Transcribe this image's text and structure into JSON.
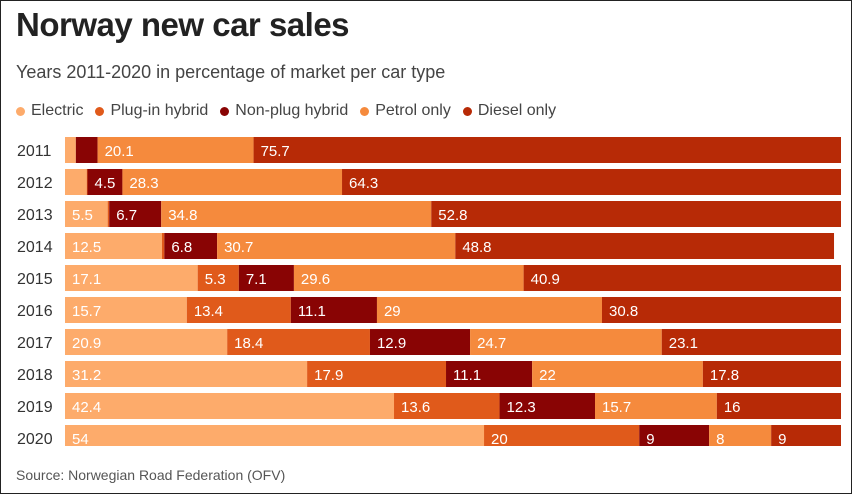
{
  "title": "Norway new car sales",
  "subtitle": "Years 2011-2020 in percentage of market per car type",
  "source": "Source: Norwegian Road Federation (OFV)",
  "chart_data": {
    "type": "bar",
    "orientation": "horizontal",
    "stacked": true,
    "categories": [
      "2011",
      "2012",
      "2013",
      "2014",
      "2015",
      "2016",
      "2017",
      "2018",
      "2019",
      "2020"
    ],
    "series": [
      {
        "name": "Electric",
        "color": "#fdab6b",
        "values": [
          1.4,
          2.8,
          5.5,
          12.5,
          17.1,
          15.7,
          20.9,
          31.2,
          42.4,
          54
        ],
        "labels": [
          "",
          "",
          "5.5",
          "12.5",
          "17.1",
          "15.7",
          "20.9",
          "31.2",
          "42.4",
          "54"
        ]
      },
      {
        "name": "Plug-in hybrid",
        "color": "#e05a1b",
        "values": [
          0,
          0.1,
          0.2,
          0.3,
          5.3,
          13.4,
          18.4,
          17.9,
          13.6,
          20
        ],
        "labels": [
          "",
          "",
          "",
          "",
          "5.3",
          "13.4",
          "18.4",
          "17.9",
          "13.6",
          "20"
        ]
      },
      {
        "name": "Non-plug hybrid",
        "color": "#890404",
        "values": [
          2.8,
          4.5,
          6.7,
          6.8,
          7.1,
          11.1,
          12.9,
          11.1,
          12.3,
          9
        ],
        "labels": [
          "",
          "4.5",
          "6.7",
          "6.8",
          "7.1",
          "11.1",
          "12.9",
          "11.1",
          "12.3",
          "9"
        ]
      },
      {
        "name": "Petrol only",
        "color": "#f58a3d",
        "values": [
          20.1,
          28.3,
          34.8,
          30.7,
          29.6,
          29,
          24.7,
          22,
          15.7,
          8
        ],
        "labels": [
          "20.1",
          "28.3",
          "34.8",
          "30.7",
          "29.6",
          "29",
          "24.7",
          "22",
          "15.7",
          "8"
        ]
      },
      {
        "name": "Diesel only",
        "color": "#b72a06",
        "values": [
          75.7,
          64.3,
          52.8,
          48.8,
          40.9,
          30.8,
          23.1,
          17.8,
          16,
          9
        ],
        "labels": [
          "75.7",
          "64.3",
          "52.8",
          "48.8",
          "40.9",
          "30.8",
          "23.1",
          "17.8",
          "16",
          "9"
        ]
      }
    ],
    "xlim": [
      0,
      100
    ],
    "grid": false,
    "legend": "top-left"
  }
}
